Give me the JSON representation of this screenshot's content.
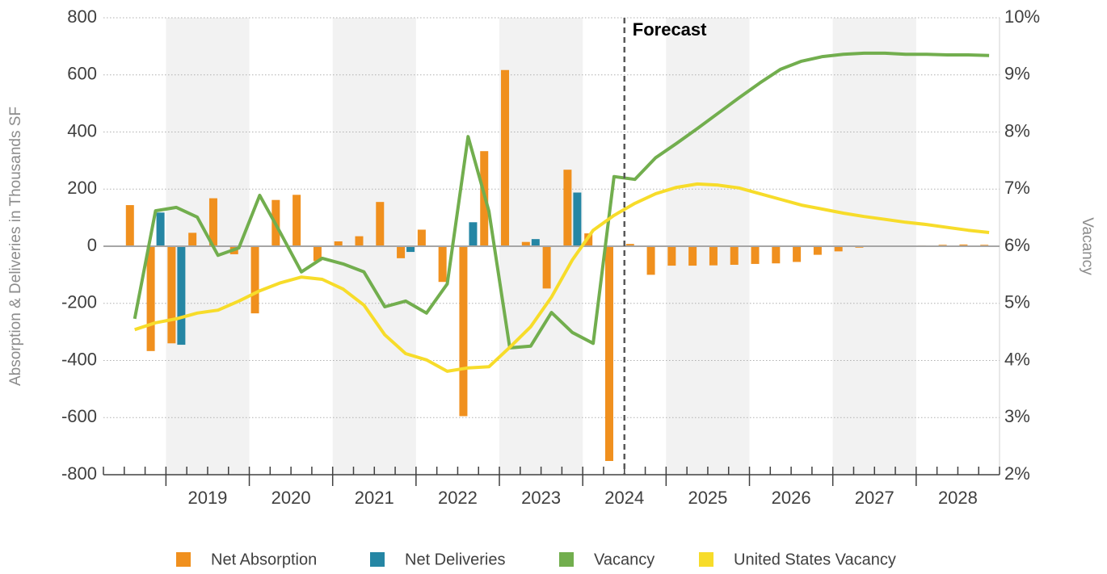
{
  "chart_data": {
    "type": "combo",
    "y_label": "Absorption & Deliveries in Thousands SF",
    "y2_label": "Vacancy",
    "categories": [
      null,
      null,
      null,
      "2019",
      null,
      null,
      null,
      "2020",
      null,
      null,
      null,
      "2021",
      null,
      null,
      null,
      "2022",
      null,
      null,
      null,
      "2023",
      null,
      null,
      null,
      "2024",
      null,
      null,
      null,
      "2025",
      null,
      null,
      null,
      "2026",
      null,
      null,
      null,
      "2027",
      null,
      null,
      null,
      "2028",
      null,
      null,
      null
    ],
    "ylim": [
      -800,
      800
    ],
    "yticks": [
      -800,
      -600,
      -400,
      -200,
      0,
      200,
      400,
      600,
      800
    ],
    "y2lim": [
      2,
      10
    ],
    "y2ticks": [
      {
        "value": 2,
        "label": "2%"
      },
      {
        "value": 3,
        "label": "3%"
      },
      {
        "value": 4,
        "label": "4%"
      },
      {
        "value": 5,
        "label": "5%"
      },
      {
        "value": 6,
        "label": "6%"
      },
      {
        "value": 7,
        "label": "7%"
      },
      {
        "value": 8,
        "label": "8%"
      },
      {
        "value": 9,
        "label": "9%"
      },
      {
        "value": 10,
        "label": "10%"
      }
    ],
    "grid": true,
    "shade_alternate_years": true,
    "forecast": {
      "label": "Forecast",
      "at_category": 25
    },
    "legend": "bottom",
    "series": [
      {
        "name": "Net Absorption",
        "type": "bar",
        "color": "#f0901e",
        "values": [
          null,
          144,
          -367,
          -340,
          47,
          168,
          -28,
          -235,
          162,
          180,
          -52,
          17,
          35,
          155,
          -42,
          58,
          -125,
          -595,
          333,
          617,
          15,
          -148,
          268,
          45,
          -752,
          8,
          -100,
          -68,
          -68,
          -67,
          -65,
          -62,
          -60,
          -55,
          -30,
          -18,
          -5,
          -2,
          2,
          3,
          5,
          6,
          5
        ]
      },
      {
        "name": "Net Deliveries",
        "type": "bar",
        "color": "#2586a4",
        "values": [
          null,
          0,
          118,
          -345,
          0,
          0,
          0,
          0,
          0,
          0,
          0,
          0,
          0,
          0,
          -20,
          0,
          0,
          84,
          0,
          0,
          25,
          0,
          188,
          0,
          0,
          0,
          0,
          0,
          0,
          0,
          0,
          0,
          0,
          0,
          0,
          0,
          0,
          0,
          0,
          0,
          0,
          0,
          0
        ]
      },
      {
        "name": "Vacancy",
        "type": "line",
        "axis": "y2",
        "color": "#72ae4e",
        "values": [
          null,
          4.73,
          6.62,
          6.68,
          6.51,
          5.84,
          5.97,
          6.89,
          6.23,
          5.55,
          5.79,
          5.69,
          5.55,
          4.94,
          5.04,
          4.83,
          5.34,
          7.92,
          6.61,
          4.22,
          4.25,
          4.84,
          4.49,
          4.3,
          7.22,
          7.17,
          7.55,
          7.8,
          8.06,
          8.33,
          8.6,
          8.86,
          9.1,
          9.24,
          9.32,
          9.36,
          9.38,
          9.38,
          9.36,
          9.36,
          9.35,
          9.35,
          9.34
        ]
      },
      {
        "name": "United States Vacancy",
        "type": "line",
        "axis": "y2",
        "color": "#f7dc2a",
        "values": [
          null,
          4.54,
          4.66,
          4.73,
          4.83,
          4.88,
          5.04,
          5.22,
          5.36,
          5.46,
          5.42,
          5.25,
          4.97,
          4.45,
          4.12,
          4.01,
          3.81,
          3.87,
          3.89,
          4.23,
          4.59,
          5.11,
          5.76,
          6.28,
          6.54,
          6.75,
          6.92,
          7.03,
          7.09,
          7.07,
          7.02,
          6.92,
          6.82,
          6.72,
          6.65,
          6.58,
          6.52,
          6.47,
          6.42,
          6.38,
          6.33,
          6.28,
          6.24
        ]
      }
    ]
  }
}
